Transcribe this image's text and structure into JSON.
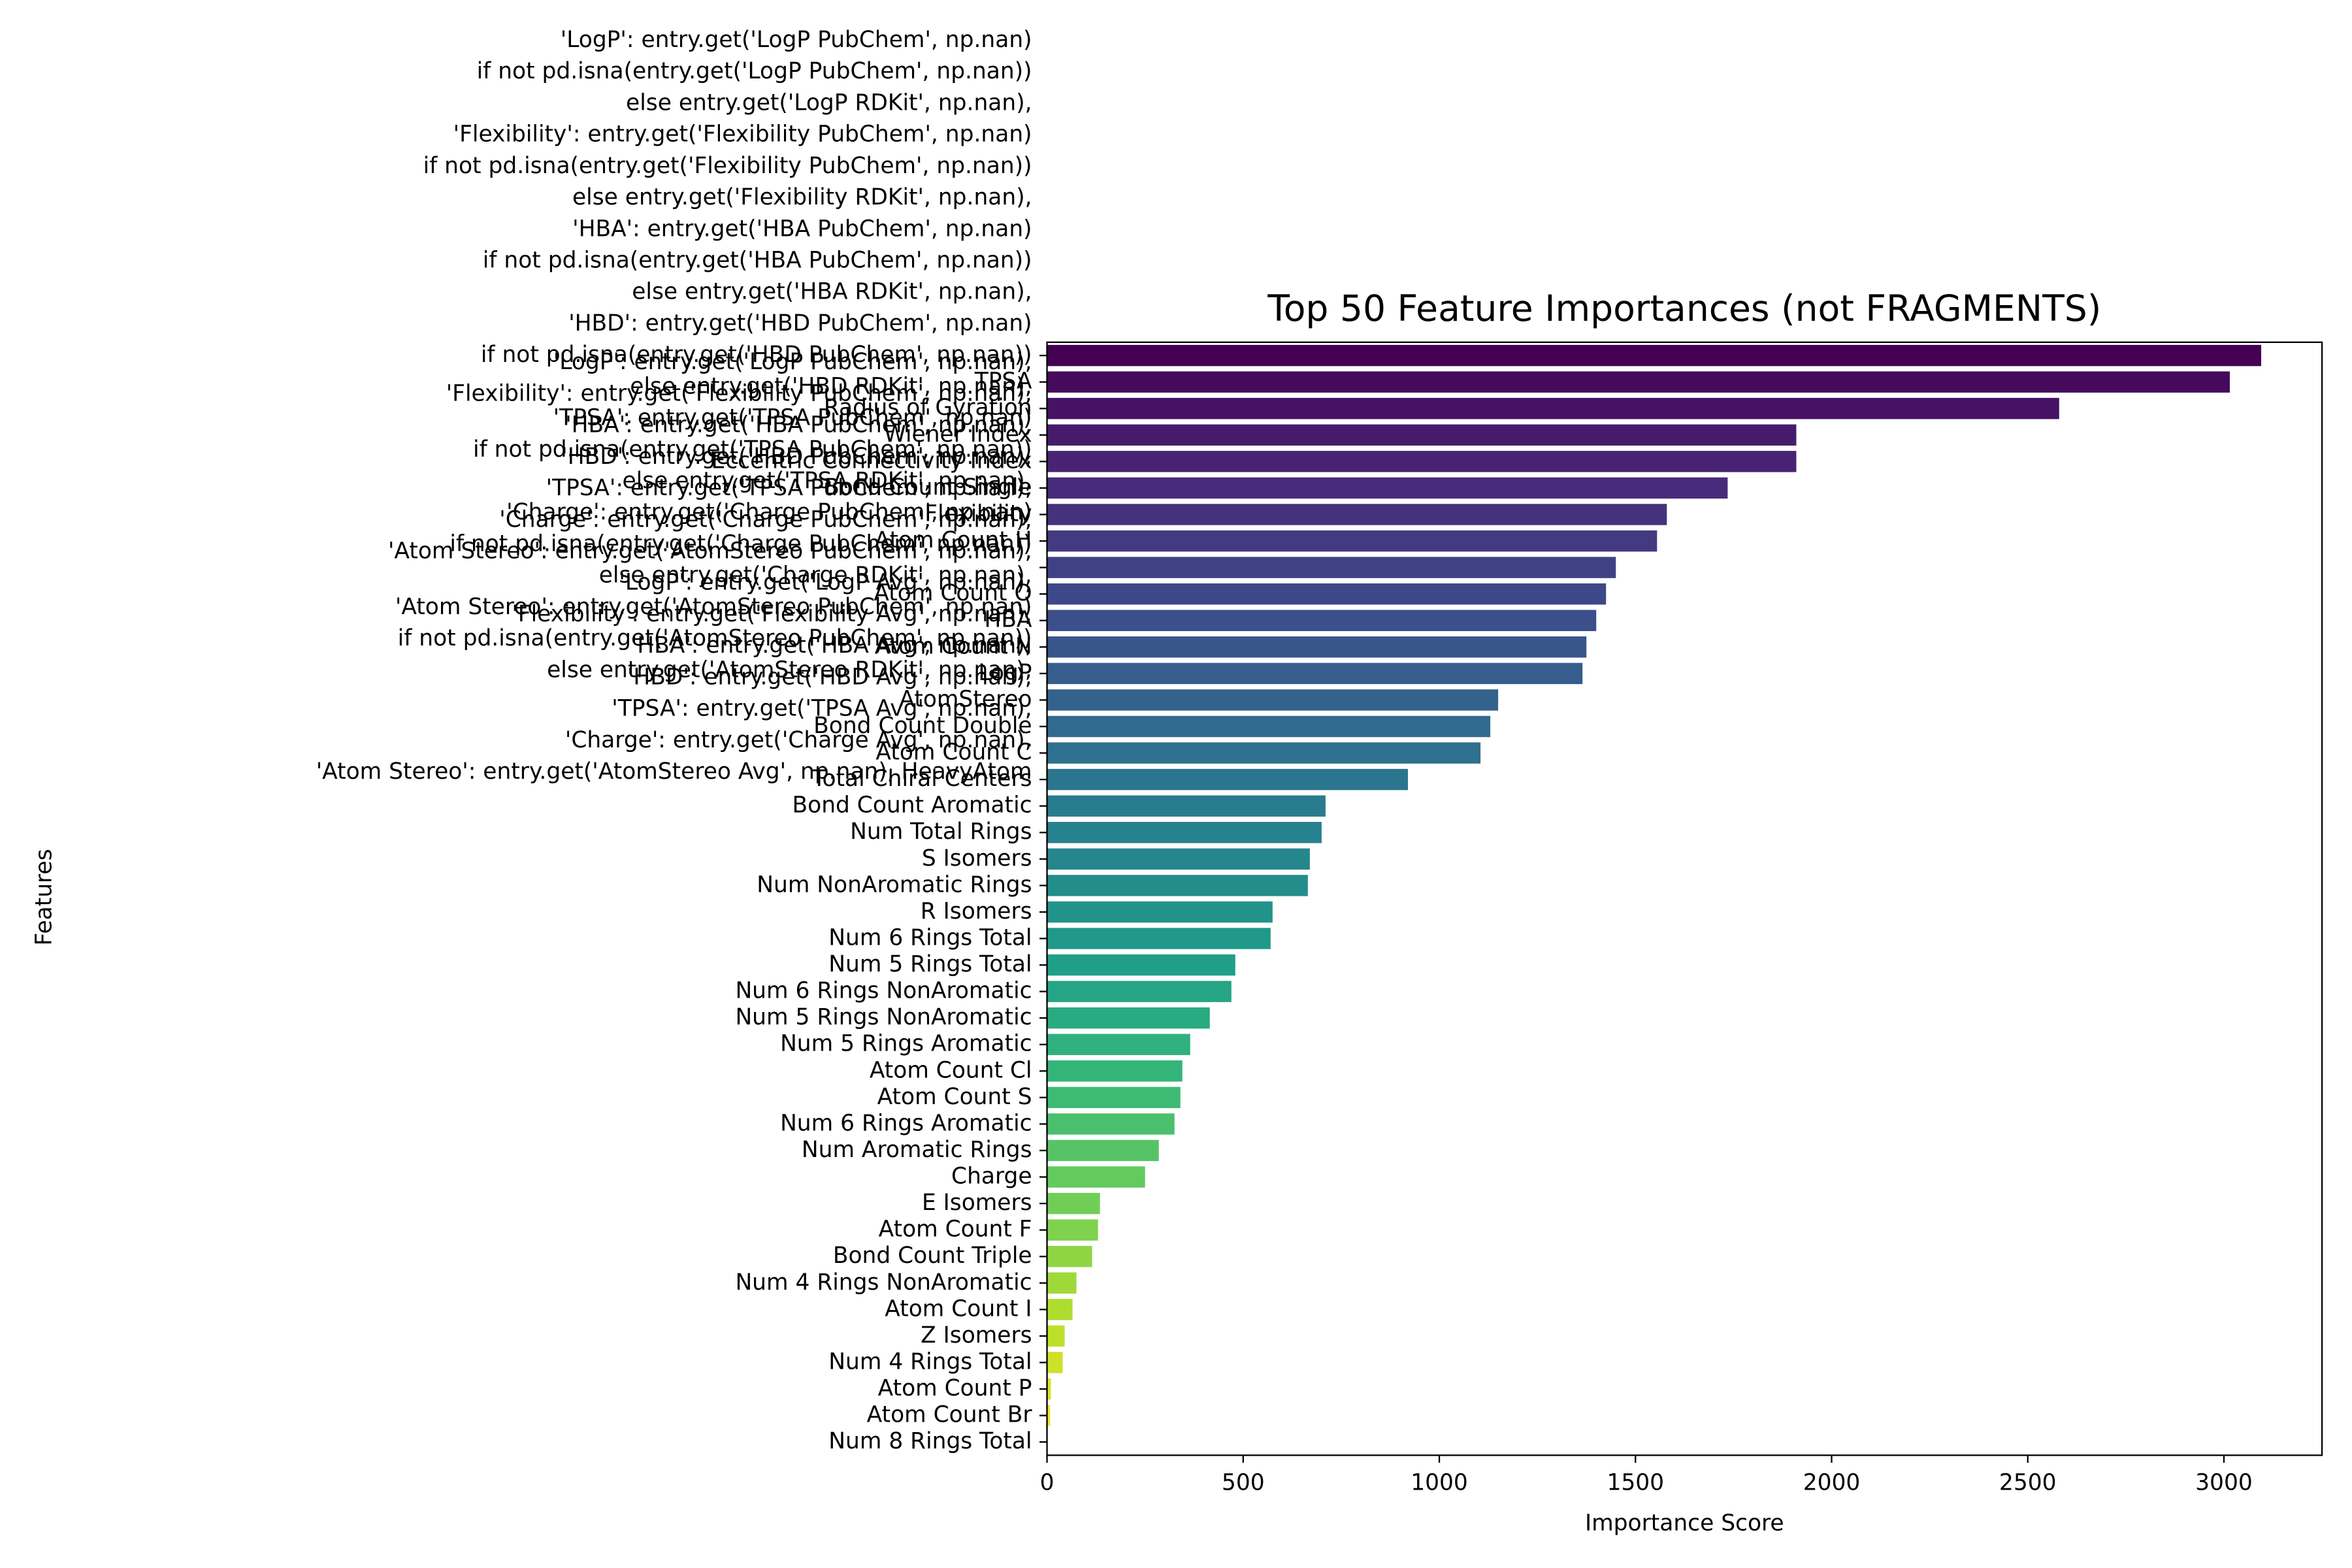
{
  "chart_data": {
    "type": "barh",
    "title": "Top 50 Feature Importances (not FRAGMENTS)",
    "xlabel": "Importance Score",
    "ylabel": "Features",
    "palette": "viridis",
    "xlim": [
      0,
      3250
    ],
    "xticks": [
      0,
      500,
      1000,
      1500,
      2000,
      2500,
      3000
    ],
    "categories": [
      "'LogP': entry.get('LogP PubChem', np.nan)\nif not pd.isna(entry.get('LogP PubChem', np.nan))\nelse entry.get('LogP RDKit', np.nan),\n'Flexibility': entry.get('Flexibility PubChem', np.nan)\nif not pd.isna(entry.get('Flexibility PubChem', np.nan))\nelse entry.get('Flexibility RDKit', np.nan),\n'HBA': entry.get('HBA PubChem', np.nan)\nif not pd.isna(entry.get('HBA PubChem', np.nan))\nelse entry.get('HBA RDKit', np.nan),\n'HBD': entry.get('HBD PubChem', np.nan)\nif not pd.isna(entry.get('HBD PubChem', np.nan))\nelse entry.get('HBD RDKit', np.nan),\n'TPSA': entry.get('TPSA PubChem', np.nan)\nif not pd.isna(entry.get('TPSA PubChem', np.nan))\nelse entry.get('TPSA RDKit', np.nan),\n'Charge': entry.get('Charge PubChem', np.nan)\nif not pd.isna(entry.get('Charge PubChem', np.nan))\nelse entry.get('Charge RDKit', np.nan),\n'Atom Stereo': entry.get('AtomStereo PubChem', np.nan)\nif not pd.isna(entry.get('AtomStereo PubChem', np.nan))\nelse entry.get('AtomStereo RDKit', np.nan),",
      "TPSA",
      "Radius of Gyration",
      "Wiener Index",
      "Eccentric Connectivity Index",
      "Bond Count Single",
      "Flexibility",
      "Atom Count H",
      "'LogP': entry.get('LogP PubChem', np.nan),\n'Flexibility': entry.get('Flexibility PubChem', np.nan),\n'HBA': entry.get('HBA PubChem', np.nan),\n'HBD': entry.get('HBD PubChem', np.nan),\n'TPSA': entry.get('TPSA PubChem', np.nan),\n'Charge': entry.get('Charge PubChem', np.nan),\n'Atom Stereo': entry.get('AtomStereo PubChem', np.nan),\n'LogP': entry.get('LogP Avg', np.nan),\n'Flexibility': entry.get('Flexibility Avg', np.nan),\n'HBA': entry.get('HBA Avg', np.nan),\n'HBD': entry.get('HBD Avg', np.nan),\n'TPSA': entry.get('TPSA Avg', np.nan),\n'Charge': entry.get('Charge Avg', np.nan),\n'Atom Stereo': entry.get('AtomStereo Avg', np.nan), HeavyAtom",
      "Atom Count O",
      "HBA",
      "Atom Count N",
      "LogP",
      "AtomStereo",
      "Bond Count Double",
      "Atom Count C",
      "Total Chiral Centers",
      "Bond Count Aromatic",
      "Num Total Rings",
      "S Isomers",
      "Num NonAromatic Rings",
      "R Isomers",
      "Num 6 Rings Total",
      "Num 5 Rings Total",
      "Num 6 Rings NonAromatic",
      "Num 5 Rings NonAromatic",
      "Num 5 Rings Aromatic",
      "Atom Count Cl",
      "Atom Count S",
      "Num 6 Rings Aromatic",
      "Num Aromatic Rings",
      "Charge",
      "E Isomers",
      "Atom Count F",
      "Bond Count Triple",
      "Num 4 Rings NonAromatic",
      "Atom Count I",
      "Z Isomers",
      "Num 4 Rings Total",
      "Atom Count P",
      "Atom Count Br",
      "Num 8 Rings Total"
    ],
    "values": [
      3095,
      3015,
      2580,
      1910,
      1910,
      1735,
      1580,
      1555,
      1450,
      1425,
      1400,
      1375,
      1365,
      1150,
      1130,
      1105,
      920,
      710,
      700,
      670,
      665,
      575,
      570,
      480,
      470,
      415,
      365,
      345,
      340,
      325,
      285,
      250,
      135,
      130,
      115,
      75,
      65,
      45,
      40,
      10,
      8,
      0
    ]
  }
}
